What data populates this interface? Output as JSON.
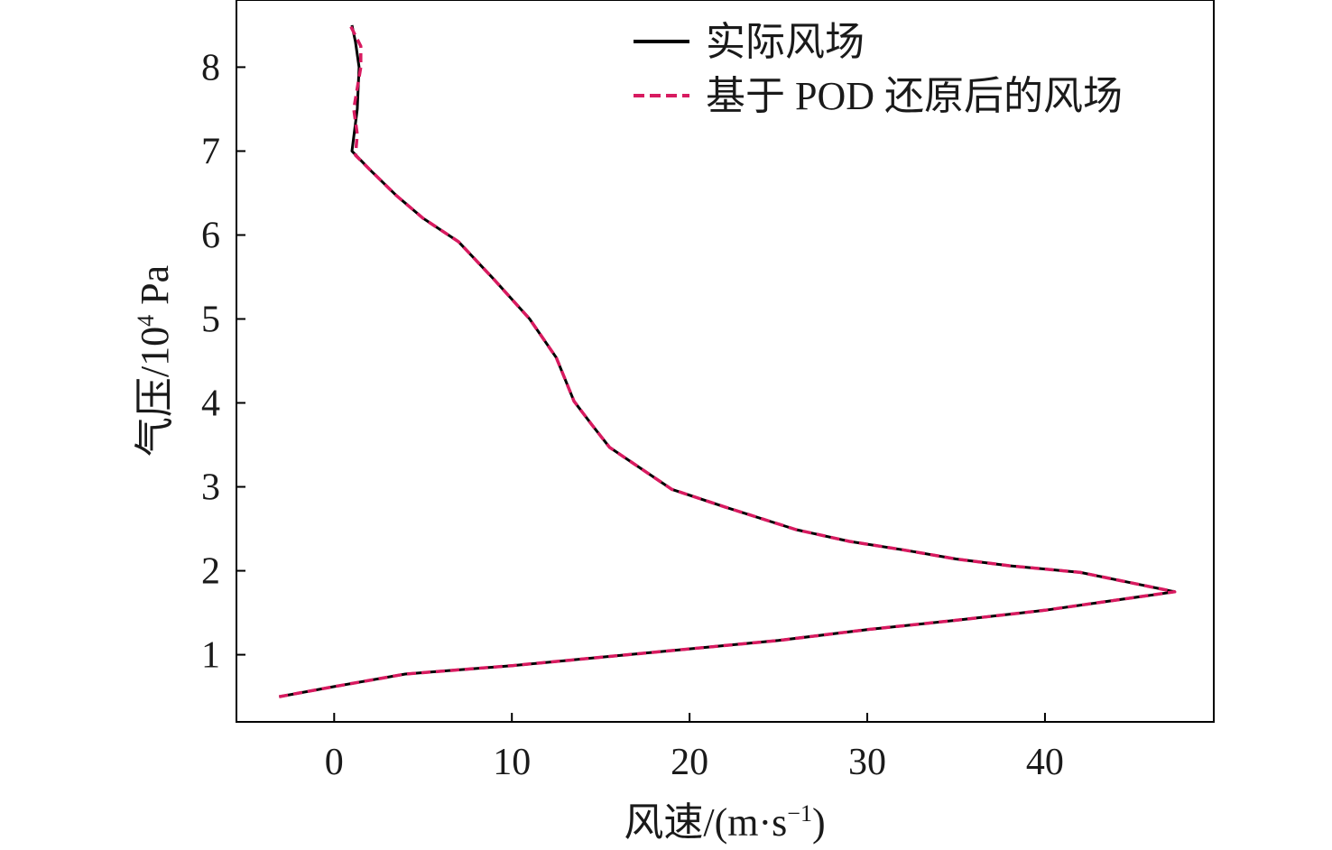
{
  "chart_data": {
    "type": "line",
    "xlabel_main": "风速/(m·s",
    "xlabel_sup": "−1",
    "xlabel_close": ")",
    "ylabel_main": "气压/10",
    "ylabel_sup": "4",
    "ylabel_unit": " Pa",
    "xlim": [
      -5.5,
      49.5
    ],
    "ylim": [
      0.2,
      8.8
    ],
    "xticks": [
      0,
      10,
      20,
      30,
      40
    ],
    "yticks": [
      1,
      2,
      3,
      4,
      5,
      6,
      7,
      8
    ],
    "legend_position": "top-right",
    "series": [
      {
        "name": "实际风场",
        "color": "#000000",
        "style": "solid",
        "points": [
          [
            -3.1,
            0.5
          ],
          [
            0,
            0.62
          ],
          [
            4,
            0.77
          ],
          [
            10,
            0.87
          ],
          [
            15,
            0.97
          ],
          [
            20,
            1.07
          ],
          [
            25,
            1.17
          ],
          [
            30,
            1.3
          ],
          [
            35,
            1.41
          ],
          [
            40,
            1.53
          ],
          [
            43,
            1.62
          ],
          [
            47.3,
            1.75
          ],
          [
            42,
            1.98
          ],
          [
            38,
            2.06
          ],
          [
            35,
            2.14
          ],
          [
            32,
            2.25
          ],
          [
            29,
            2.35
          ],
          [
            26,
            2.49
          ],
          [
            22,
            2.76
          ],
          [
            19,
            2.97
          ],
          [
            15.5,
            3.47
          ],
          [
            14.5,
            3.74
          ],
          [
            13.5,
            4.02
          ],
          [
            12.5,
            4.54
          ],
          [
            11,
            5.0
          ],
          [
            9,
            5.47
          ],
          [
            7,
            5.92
          ],
          [
            5,
            6.2
          ],
          [
            3.5,
            6.47
          ],
          [
            2,
            6.78
          ],
          [
            1,
            7.0
          ],
          [
            1.3,
            7.5
          ],
          [
            1.4,
            8.0
          ],
          [
            1.2,
            8.3
          ],
          [
            1,
            8.5
          ]
        ]
      },
      {
        "name": "基于 POD 还原后的风场",
        "color": "#d81b60",
        "style": "dashed",
        "points": [
          [
            -3.1,
            0.5
          ],
          [
            0,
            0.62
          ],
          [
            4,
            0.77
          ],
          [
            10,
            0.87
          ],
          [
            15,
            0.97
          ],
          [
            20,
            1.07
          ],
          [
            25,
            1.17
          ],
          [
            30,
            1.3
          ],
          [
            35,
            1.41
          ],
          [
            40,
            1.53
          ],
          [
            43,
            1.62
          ],
          [
            47.3,
            1.75
          ],
          [
            42,
            1.98
          ],
          [
            38,
            2.06
          ],
          [
            35,
            2.14
          ],
          [
            32,
            2.25
          ],
          [
            29,
            2.35
          ],
          [
            26,
            2.49
          ],
          [
            22,
            2.76
          ],
          [
            19,
            2.97
          ],
          [
            15.5,
            3.47
          ],
          [
            14.5,
            3.74
          ],
          [
            13.5,
            4.02
          ],
          [
            12.5,
            4.54
          ],
          [
            11,
            5.0
          ],
          [
            9,
            5.47
          ],
          [
            7,
            5.92
          ],
          [
            5,
            6.2
          ],
          [
            3.5,
            6.47
          ],
          [
            2,
            6.78
          ],
          [
            1.2,
            6.95
          ],
          [
            1.3,
            7.2
          ],
          [
            1.1,
            7.5
          ],
          [
            1.5,
            8.0
          ],
          [
            1.5,
            8.25
          ],
          [
            0.9,
            8.5
          ]
        ]
      }
    ]
  }
}
